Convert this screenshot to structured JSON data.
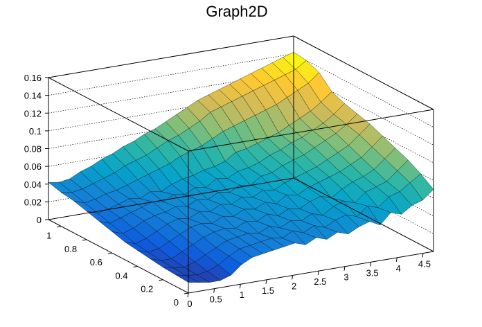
{
  "chart_data": {
    "type": "surface3d",
    "title": "Graph2D",
    "xlabel": "",
    "ylabel": "",
    "zlabel": "",
    "xlim": [
      0,
      4.7
    ],
    "ylim": [
      0,
      1.1
    ],
    "zlim": [
      0,
      0.16
    ],
    "x_ticks": [
      "0",
      "0.5",
      "1",
      "1.5",
      "2",
      "2.5",
      "3",
      "3.5",
      "4",
      "4.5"
    ],
    "x_tick_values": [
      0,
      0.5,
      1,
      1.5,
      2,
      2.5,
      3,
      3.5,
      4,
      4.5
    ],
    "y_ticks": [
      "0",
      "0.2",
      "0.4",
      "0.6",
      "0.8",
      "1"
    ],
    "y_tick_values": [
      0,
      0.2,
      0.4,
      0.6,
      0.8,
      1.0
    ],
    "z_ticks": [
      "0",
      "0.02",
      "0.04",
      "0.06",
      "0.08",
      "0.1",
      "0.12",
      "0.14",
      "0.16"
    ],
    "z_tick_values": [
      0,
      0.02,
      0.04,
      0.06,
      0.08,
      0.1,
      0.12,
      0.14,
      0.16
    ],
    "grid": true,
    "palette": [
      "#352a87",
      "#0f5cdd",
      "#1481d6",
      "#06a4ca",
      "#2eb7a4",
      "#87bf77",
      "#d1bb59",
      "#fec832",
      "#f9fb0e"
    ],
    "surface_z": [
      [
        0.012,
        0.01,
        0.008,
        0.008,
        0.012,
        0.022,
        0.028,
        0.03,
        0.032,
        0.034,
        0.036,
        0.032,
        0.038,
        0.034,
        0.04,
        0.036,
        0.042,
        0.046,
        0.04,
        0.052,
        0.048,
        0.056,
        0.06,
        0.07
      ],
      [
        0.013,
        0.01,
        0.009,
        0.011,
        0.016,
        0.024,
        0.03,
        0.032,
        0.034,
        0.036,
        0.034,
        0.04,
        0.036,
        0.042,
        0.038,
        0.044,
        0.048,
        0.044,
        0.054,
        0.05,
        0.06,
        0.064,
        0.072,
        0.08
      ],
      [
        0.014,
        0.011,
        0.01,
        0.014,
        0.02,
        0.026,
        0.032,
        0.034,
        0.036,
        0.034,
        0.04,
        0.036,
        0.042,
        0.04,
        0.046,
        0.042,
        0.05,
        0.054,
        0.05,
        0.06,
        0.064,
        0.068,
        0.078,
        0.088
      ],
      [
        0.016,
        0.012,
        0.012,
        0.018,
        0.024,
        0.03,
        0.034,
        0.036,
        0.034,
        0.04,
        0.038,
        0.044,
        0.04,
        0.046,
        0.044,
        0.05,
        0.054,
        0.05,
        0.058,
        0.064,
        0.068,
        0.074,
        0.084,
        0.094
      ],
      [
        0.018,
        0.014,
        0.016,
        0.022,
        0.028,
        0.034,
        0.036,
        0.034,
        0.04,
        0.038,
        0.044,
        0.042,
        0.048,
        0.044,
        0.052,
        0.05,
        0.056,
        0.06,
        0.064,
        0.068,
        0.074,
        0.08,
        0.09,
        0.1
      ],
      [
        0.02,
        0.016,
        0.02,
        0.026,
        0.032,
        0.036,
        0.034,
        0.04,
        0.038,
        0.044,
        0.042,
        0.048,
        0.046,
        0.052,
        0.05,
        0.056,
        0.06,
        0.064,
        0.068,
        0.074,
        0.08,
        0.086,
        0.096,
        0.106
      ],
      [
        0.024,
        0.02,
        0.024,
        0.03,
        0.034,
        0.036,
        0.04,
        0.038,
        0.044,
        0.042,
        0.048,
        0.046,
        0.052,
        0.05,
        0.058,
        0.06,
        0.066,
        0.07,
        0.074,
        0.08,
        0.086,
        0.092,
        0.1,
        0.11
      ],
      [
        0.028,
        0.024,
        0.028,
        0.032,
        0.036,
        0.04,
        0.038,
        0.044,
        0.042,
        0.048,
        0.046,
        0.054,
        0.052,
        0.058,
        0.06,
        0.064,
        0.07,
        0.074,
        0.08,
        0.084,
        0.09,
        0.096,
        0.104,
        0.114
      ],
      [
        0.032,
        0.028,
        0.03,
        0.034,
        0.038,
        0.036,
        0.042,
        0.04,
        0.046,
        0.05,
        0.052,
        0.056,
        0.058,
        0.062,
        0.07,
        0.072,
        0.076,
        0.08,
        0.084,
        0.09,
        0.096,
        0.102,
        0.11,
        0.12
      ],
      [
        0.036,
        0.032,
        0.034,
        0.038,
        0.04,
        0.044,
        0.048,
        0.052,
        0.056,
        0.06,
        0.066,
        0.07,
        0.074,
        0.08,
        0.086,
        0.09,
        0.094,
        0.098,
        0.102,
        0.106,
        0.112,
        0.118,
        0.124,
        0.134
      ],
      [
        0.038,
        0.036,
        0.038,
        0.042,
        0.046,
        0.05,
        0.056,
        0.06,
        0.064,
        0.07,
        0.076,
        0.08,
        0.086,
        0.092,
        0.1,
        0.104,
        0.108,
        0.112,
        0.116,
        0.12,
        0.124,
        0.128,
        0.132,
        0.14
      ],
      [
        0.042,
        0.04,
        0.042,
        0.048,
        0.052,
        0.058,
        0.062,
        0.068,
        0.072,
        0.078,
        0.082,
        0.088,
        0.094,
        0.1,
        0.106,
        0.11,
        0.114,
        0.118,
        0.122,
        0.126,
        0.13,
        0.134,
        0.138,
        0.142
      ]
    ]
  }
}
